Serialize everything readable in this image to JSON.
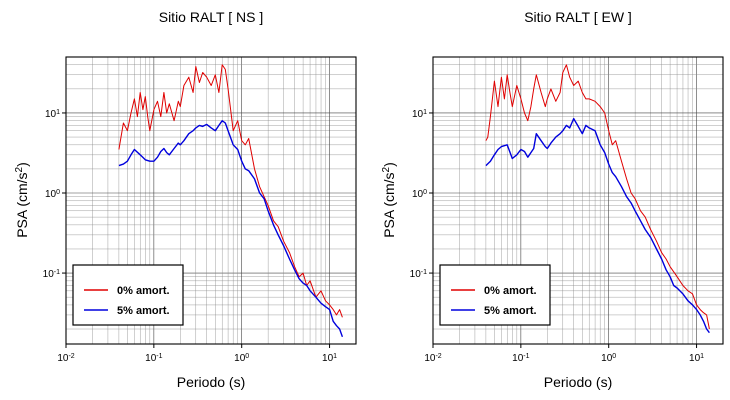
{
  "chart_data": [
    {
      "type": "line",
      "title": "Sitio RALT [ NS ]",
      "xlabel": "Periodo (s)",
      "ylabel": "PSA (cm/s2)",
      "xscale": "log",
      "yscale": "log",
      "xlim": [
        0.01,
        20
      ],
      "ylim": [
        0.013,
        50
      ],
      "grid": true,
      "legend_position": "bottom-left",
      "x_ticks": [
        {
          "base": "10",
          "exp": "-2"
        },
        {
          "base": "10",
          "exp": "-1"
        },
        {
          "base": "10",
          "exp": "0"
        },
        {
          "base": "10",
          "exp": "1"
        }
      ],
      "y_ticks": [
        {
          "base": "10",
          "exp": "-1"
        },
        {
          "base": "10",
          "exp": "0"
        },
        {
          "base": "10",
          "exp": "1"
        }
      ],
      "series": [
        {
          "name": "0% amort.",
          "color": "#e00000",
          "x": [
            0.04,
            0.045,
            0.05,
            0.055,
            0.06,
            0.065,
            0.07,
            0.075,
            0.08,
            0.085,
            0.09,
            0.1,
            0.11,
            0.12,
            0.13,
            0.14,
            0.15,
            0.17,
            0.19,
            0.2,
            0.22,
            0.25,
            0.28,
            0.3,
            0.33,
            0.36,
            0.4,
            0.45,
            0.5,
            0.55,
            0.6,
            0.65,
            0.7,
            0.8,
            0.9,
            1.0,
            1.1,
            1.2,
            1.4,
            1.6,
            1.8,
            2.0,
            2.3,
            2.6,
            3.0,
            3.5,
            4.0,
            4.5,
            5.0,
            5.5,
            6.0,
            7.0,
            8.0,
            9.0,
            10.0,
            11.0,
            12.0,
            13.0,
            14.0
          ],
          "y": [
            3.5,
            7.5,
            6.0,
            10.0,
            15.0,
            9.0,
            18.0,
            11.0,
            16.0,
            9.0,
            6.0,
            11.0,
            14.0,
            9.0,
            18.0,
            10.0,
            13.0,
            8.0,
            14.0,
            12.0,
            22.0,
            28.0,
            18.0,
            38.0,
            24.0,
            32.0,
            28.0,
            22.0,
            30.0,
            18.0,
            40.0,
            35.0,
            20.0,
            6.0,
            8.0,
            4.5,
            4.0,
            4.8,
            2.0,
            1.2,
            0.9,
            0.7,
            0.45,
            0.38,
            0.25,
            0.18,
            0.12,
            0.09,
            0.1,
            0.07,
            0.08,
            0.05,
            0.06,
            0.045,
            0.04,
            0.035,
            0.03,
            0.035,
            0.028
          ]
        },
        {
          "name": "5% amort.",
          "color": "#0000dd",
          "x": [
            0.04,
            0.045,
            0.05,
            0.055,
            0.06,
            0.07,
            0.08,
            0.09,
            0.1,
            0.11,
            0.12,
            0.13,
            0.14,
            0.15,
            0.17,
            0.19,
            0.2,
            0.22,
            0.25,
            0.28,
            0.3,
            0.33,
            0.36,
            0.4,
            0.45,
            0.5,
            0.55,
            0.6,
            0.65,
            0.7,
            0.8,
            0.9,
            1.0,
            1.1,
            1.2,
            1.4,
            1.6,
            1.8,
            2.0,
            2.3,
            2.6,
            3.0,
            3.5,
            4.0,
            4.5,
            5.0,
            5.5,
            6.0,
            7.0,
            8.0,
            9.0,
            10.0,
            11.0,
            12.0,
            13.0,
            14.0
          ],
          "y": [
            2.2,
            2.3,
            2.5,
            3.0,
            3.5,
            3.0,
            2.6,
            2.5,
            2.5,
            2.8,
            3.3,
            3.6,
            3.2,
            3.0,
            3.6,
            4.2,
            4.0,
            4.5,
            5.5,
            6.0,
            6.5,
            7.0,
            6.8,
            7.2,
            6.5,
            6.0,
            7.0,
            8.0,
            7.5,
            6.0,
            4.0,
            3.5,
            2.5,
            2.0,
            1.9,
            1.5,
            1.0,
            0.85,
            0.6,
            0.4,
            0.3,
            0.22,
            0.15,
            0.11,
            0.085,
            0.075,
            0.07,
            0.06,
            0.05,
            0.042,
            0.038,
            0.035,
            0.025,
            0.022,
            0.02,
            0.016
          ]
        }
      ]
    },
    {
      "type": "line",
      "title": "Sitio RALT [ EW ]",
      "xlabel": "Periodo (s)",
      "ylabel": "PSA (cm/s2)",
      "xscale": "log",
      "yscale": "log",
      "xlim": [
        0.01,
        20
      ],
      "ylim": [
        0.013,
        50
      ],
      "grid": true,
      "legend_position": "bottom-left",
      "x_ticks": [
        {
          "base": "10",
          "exp": "-2"
        },
        {
          "base": "10",
          "exp": "-1"
        },
        {
          "base": "10",
          "exp": "0"
        },
        {
          "base": "10",
          "exp": "1"
        }
      ],
      "y_ticks": [
        {
          "base": "10",
          "exp": "-1"
        },
        {
          "base": "10",
          "exp": "0"
        },
        {
          "base": "10",
          "exp": "1"
        }
      ],
      "series": [
        {
          "name": "0% amort.",
          "color": "#e00000",
          "x": [
            0.04,
            0.042,
            0.045,
            0.05,
            0.055,
            0.06,
            0.065,
            0.07,
            0.075,
            0.08,
            0.09,
            0.1,
            0.11,
            0.12,
            0.13,
            0.14,
            0.15,
            0.17,
            0.19,
            0.2,
            0.22,
            0.25,
            0.28,
            0.3,
            0.33,
            0.36,
            0.4,
            0.45,
            0.5,
            0.55,
            0.6,
            0.7,
            0.8,
            0.9,
            1.0,
            1.1,
            1.2,
            1.4,
            1.6,
            1.8,
            2.0,
            2.3,
            2.6,
            3.0,
            3.5,
            4.0,
            4.5,
            5.0,
            6.0,
            7.0,
            8.0,
            9.0,
            10.0,
            11.0,
            12.0,
            13.0,
            14.0
          ],
          "y": [
            4.5,
            5.0,
            9.0,
            25.0,
            12.0,
            28.0,
            15.0,
            30.0,
            18.0,
            12.0,
            22.0,
            15.0,
            10.0,
            8.0,
            12.0,
            20.0,
            30.0,
            18.0,
            12.0,
            15.0,
            20.0,
            14.0,
            18.0,
            32.0,
            40.0,
            28.0,
            22.0,
            25.0,
            18.0,
            15.0,
            15.0,
            14.0,
            12.0,
            10.0,
            6.0,
            4.0,
            4.5,
            2.5,
            1.5,
            1.0,
            0.85,
            0.6,
            0.5,
            0.35,
            0.25,
            0.18,
            0.15,
            0.12,
            0.09,
            0.07,
            0.06,
            0.055,
            0.04,
            0.035,
            0.032,
            0.03,
            0.02
          ]
        },
        {
          "name": "5% amort.",
          "color": "#0000dd",
          "x": [
            0.04,
            0.045,
            0.05,
            0.055,
            0.06,
            0.07,
            0.08,
            0.09,
            0.1,
            0.11,
            0.12,
            0.13,
            0.14,
            0.15,
            0.17,
            0.19,
            0.2,
            0.22,
            0.25,
            0.28,
            0.3,
            0.33,
            0.36,
            0.4,
            0.45,
            0.5,
            0.55,
            0.6,
            0.7,
            0.8,
            0.9,
            1.0,
            1.1,
            1.2,
            1.4,
            1.6,
            1.8,
            2.0,
            2.3,
            2.6,
            3.0,
            3.5,
            4.0,
            4.5,
            5.0,
            5.5,
            6.0,
            7.0,
            8.0,
            9.0,
            10.0,
            11.0,
            12.0,
            13.0,
            14.0
          ],
          "y": [
            2.2,
            2.5,
            3.0,
            3.5,
            3.8,
            4.0,
            2.7,
            3.0,
            3.5,
            3.3,
            2.8,
            3.2,
            3.6,
            5.5,
            4.5,
            3.8,
            3.6,
            4.2,
            5.0,
            5.5,
            6.0,
            7.0,
            6.5,
            8.5,
            6.8,
            5.5,
            7.0,
            6.5,
            6.0,
            4.0,
            3.2,
            2.3,
            1.8,
            1.6,
            1.2,
            0.9,
            0.75,
            0.6,
            0.45,
            0.35,
            0.28,
            0.2,
            0.15,
            0.11,
            0.09,
            0.07,
            0.065,
            0.055,
            0.045,
            0.04,
            0.035,
            0.03,
            0.025,
            0.02,
            0.018
          ]
        }
      ]
    }
  ]
}
